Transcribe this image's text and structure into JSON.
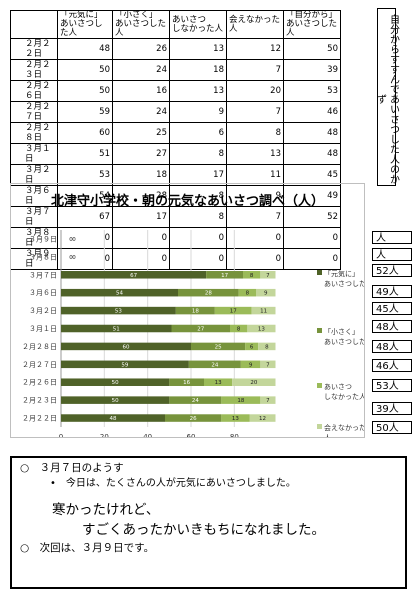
{
  "table": {
    "headers": [
      "",
      "「元気に」\nあいさつした人",
      "「小さく」\nあいさつした人",
      "あいさつ\nしなかった人",
      "会えなかった人",
      "「自分から」\nあいさつした人"
    ],
    "rows": [
      [
        "２月２２日",
        "48",
        "26",
        "13",
        "12",
        "50"
      ],
      [
        "２月２３日",
        "50",
        "24",
        "18",
        "7",
        "39"
      ],
      [
        "２月２６日",
        "50",
        "16",
        "13",
        "20",
        "53"
      ],
      [
        "２月２７日",
        "59",
        "24",
        "9",
        "7",
        "46"
      ],
      [
        "２月２８日",
        "60",
        "25",
        "6",
        "8",
        "48"
      ],
      [
        "３月１日",
        "51",
        "27",
        "8",
        "13",
        "48"
      ],
      [
        "３月２日",
        "53",
        "18",
        "17",
        "11",
        "45"
      ],
      [
        "３月６日",
        "54",
        "28",
        "8",
        "9",
        "49"
      ],
      [
        "３月７日",
        "67",
        "17",
        "8",
        "7",
        "52"
      ],
      [
        "３月８日",
        "0",
        "0",
        "0",
        "0",
        "0"
      ],
      [
        "３月９日",
        "0",
        "0",
        "0",
        "0",
        "0"
      ]
    ]
  },
  "side_label": "自分からすすんであいさつした人のかず",
  "counts": [
    "人",
    "人",
    "52人",
    "49人",
    "45人",
    "48人",
    "48人",
    "46人",
    "53人",
    "39人",
    "50人"
  ],
  "chart_data": {
    "type": "bar",
    "orientation": "horizontal",
    "stacked": true,
    "title": "北津守小学校・朝の元気なあいさつ調べ（人）",
    "categories": [
      "３月９日",
      "３月８日",
      "３月７日",
      "３月６日",
      "３月２日",
      "３月１日",
      "２月２８日",
      "２月２７日",
      "２月２６日",
      "２月２３日",
      "２月２２日"
    ],
    "series": [
      {
        "name": "「元気に」\nあいさつした人",
        "values": [
          0,
          0,
          67,
          54,
          53,
          51,
          60,
          59,
          50,
          50,
          48
        ],
        "color": "#4f6228"
      },
      {
        "name": "「小さく」\nあいさつした人",
        "values": [
          0,
          0,
          17,
          28,
          18,
          27,
          25,
          24,
          16,
          24,
          26
        ],
        "color": "#77933c"
      },
      {
        "name": "あいさつ\nしなかった人",
        "values": [
          0,
          0,
          8,
          8,
          17,
          8,
          6,
          9,
          13,
          18,
          13
        ],
        "color": "#9bbb59"
      },
      {
        "name": "会えなかった\n人",
        "values": [
          0,
          0,
          7,
          9,
          11,
          13,
          8,
          7,
          20,
          7,
          12
        ],
        "color": "#c3d69b"
      }
    ],
    "xlim": [
      0,
      120
    ],
    "xticks": [
      "0",
      "20",
      "40",
      "60",
      "80"
    ],
    "grid": true,
    "legend": "right"
  },
  "notes": {
    "heading": "○　３月７日のようす",
    "bullet": "•　今日は、たくさんの人が元気にあいさつしました。",
    "line1": "寒かったけれど、",
    "line2": "すごくあったかいきもちになれました。",
    "next": "○　次回は、３月９日です。"
  }
}
